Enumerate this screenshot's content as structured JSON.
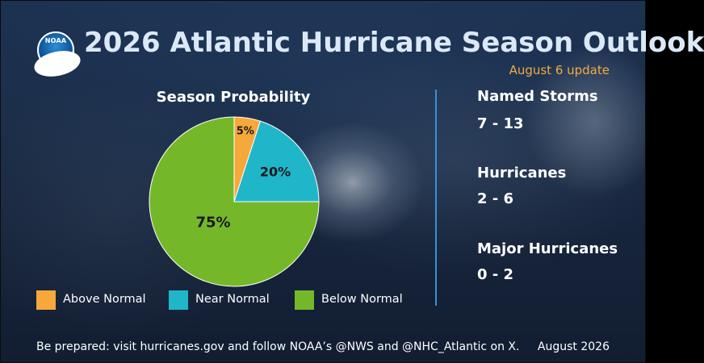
{
  "header": {
    "logo_text": "NOAA",
    "title": "2026 Atlantic Hurricane Season Outlook",
    "subtitle": "August 6 update"
  },
  "colors": {
    "title": "#dbe9f7",
    "subtitle": "#f2ab44",
    "above_normal": "#f6a83b",
    "near_normal": "#20b6c9",
    "below_normal": "#74b82a",
    "divider": "#3a8fd6"
  },
  "chart_data": {
    "type": "pie",
    "title": "Season Probability",
    "slices": [
      {
        "name": "Above Normal",
        "value": 5,
        "label": "5%",
        "color": "#f6a83b"
      },
      {
        "name": "Near Normal",
        "value": 20,
        "label": "20%",
        "color": "#20b6c9"
      },
      {
        "name": "Below Normal",
        "value": 75,
        "label": "75%",
        "color": "#74b82a"
      }
    ],
    "legend": {
      "placement": "bottom",
      "items": [
        "Above Normal",
        "Near Normal",
        "Below Normal"
      ]
    }
  },
  "stats": [
    {
      "label": "Named Storms",
      "value": "7 - 13"
    },
    {
      "label": "Hurricanes",
      "value": "2 - 6"
    },
    {
      "label": "Major Hurricanes",
      "value": "0 - 2"
    }
  ],
  "footer": {
    "text": "Be prepared: visit hurricanes.gov and follow NOAA’s @NWS and @NHC_Atlantic on X.",
    "date": "August 2026"
  }
}
